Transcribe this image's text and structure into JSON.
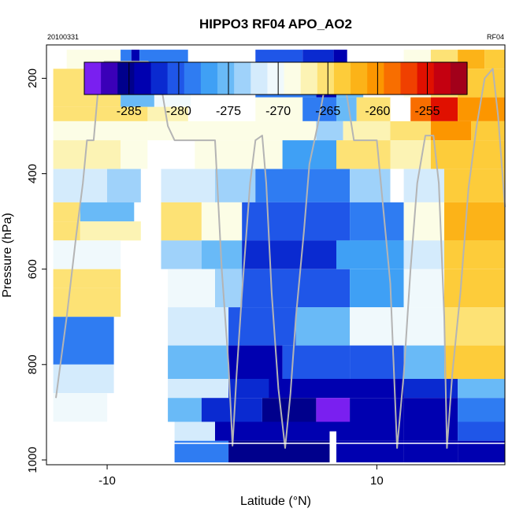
{
  "chart_data": {
    "type": "heatmap",
    "title": "HIPPO3 RF04 APO_AO2",
    "date_label": "20100331",
    "flight_label": "RF04",
    "xlabel": "Latitude (°N)",
    "ylabel": "Pressure (hPa)",
    "xlim": [
      -14.5,
      19.5
    ],
    "ylim": [
      1010,
      130
    ],
    "x_ticks": [
      -10,
      10
    ],
    "y_ticks": [
      200,
      400,
      600,
      800,
      1000
    ],
    "colorbar": {
      "range": [
        -289.5,
        -251
      ],
      "ticks": [
        -285,
        -280,
        -275,
        -270,
        -265,
        -260,
        -255
      ],
      "colors": [
        "#7a1ff0",
        "#3a00b8",
        "#00008c",
        "#0000b0",
        "#0a2ad0",
        "#1f56e8",
        "#2f7cf2",
        "#3fa0f5",
        "#69baf7",
        "#9fd2fa",
        "#d4ebfc",
        "#f0f9fc",
        "#fcfde6",
        "#fcf3b4",
        "#fde275",
        "#fdcc3a",
        "#fcb318",
        "#fc9600",
        "#f86e00",
        "#f04000",
        "#e01000",
        "#c40010",
        "#a2001a"
      ]
    },
    "cells": [
      [
        -13.0,
        -9.0,
        140,
        180,
        -269
      ],
      [
        -9.0,
        -8.2,
        140,
        180,
        -279
      ],
      [
        -8.2,
        -7.6,
        140,
        180,
        -284
      ],
      [
        -7.6,
        -4.0,
        140,
        180,
        -278
      ],
      [
        -14.0,
        -9.0,
        180,
        260,
        -265
      ],
      [
        -9.0,
        -6.5,
        180,
        260,
        -275
      ],
      [
        -6.5,
        -3.8,
        180,
        260,
        -270
      ],
      [
        -14.0,
        -7.0,
        260,
        290,
        -266
      ],
      [
        -7.0,
        -4.0,
        260,
        290,
        -267
      ],
      [
        -14.0,
        -7.0,
        290,
        330,
        -268
      ],
      [
        -7.0,
        2.0,
        290,
        330,
        -269
      ],
      [
        -14.0,
        -9.0,
        330,
        390,
        -267
      ],
      [
        -9.0,
        -7.0,
        330,
        390,
        -268
      ],
      [
        -14.0,
        -10.0,
        390,
        460,
        -272
      ],
      [
        -10.0,
        -7.5,
        390,
        460,
        -273
      ],
      [
        -14.0,
        -12.0,
        460,
        500,
        -265
      ],
      [
        -12.0,
        -8.0,
        460,
        500,
        -275
      ],
      [
        -14.0,
        -12.0,
        500,
        540,
        -266
      ],
      [
        -12.0,
        -7.5,
        500,
        540,
        -267
      ],
      [
        -14.0,
        -9.0,
        540,
        600,
        -270
      ],
      [
        -14.0,
        -9.0,
        600,
        640,
        -265
      ],
      [
        -14.0,
        -9.0,
        640,
        700,
        -266
      ],
      [
        -14.0,
        -9.5,
        700,
        800,
        -279
      ],
      [
        -14.0,
        -9.5,
        800,
        860,
        -272
      ],
      [
        -14.0,
        -10.0,
        860,
        920,
        -270
      ],
      [
        1.0,
        4.5,
        140,
        180,
        -280
      ],
      [
        4.5,
        6.8,
        140,
        180,
        -282
      ],
      [
        6.8,
        7.8,
        140,
        180,
        -284
      ],
      [
        1.0,
        5.5,
        180,
        240,
        -278
      ],
      [
        5.5,
        7.0,
        180,
        240,
        -283
      ],
      [
        7.0,
        9.0,
        180,
        240,
        -276
      ],
      [
        1.0,
        4.5,
        240,
        290,
        -268
      ],
      [
        4.5,
        7.0,
        240,
        290,
        -278
      ],
      [
        7.0,
        8.5,
        240,
        290,
        -276
      ],
      [
        8.5,
        11.0,
        240,
        290,
        -266
      ],
      [
        2.0,
        5.5,
        290,
        330,
        -268
      ],
      [
        5.5,
        7.5,
        290,
        330,
        -273
      ],
      [
        7.5,
        11.0,
        290,
        330,
        -267
      ],
      [
        -3.5,
        3.0,
        330,
        390,
        -268
      ],
      [
        3.0,
        7.0,
        330,
        390,
        -277
      ],
      [
        7.0,
        11.0,
        330,
        390,
        -266
      ],
      [
        -6.0,
        -2.0,
        390,
        460,
        -272
      ],
      [
        -2.0,
        1.0,
        390,
        460,
        -273
      ],
      [
        1.0,
        8.0,
        390,
        460,
        -279
      ],
      [
        8.0,
        11.0,
        390,
        460,
        -273
      ],
      [
        -6.0,
        -3.0,
        460,
        540,
        -266
      ],
      [
        -3.0,
        0.0,
        460,
        540,
        -269
      ],
      [
        0.0,
        8.0,
        460,
        540,
        -281
      ],
      [
        8.0,
        12.0,
        460,
        540,
        -278
      ],
      [
        -6.0,
        -3.0,
        540,
        600,
        -273
      ],
      [
        -3.0,
        0.0,
        540,
        600,
        -276
      ],
      [
        0.0,
        7.0,
        540,
        600,
        -282
      ],
      [
        7.0,
        12.0,
        540,
        600,
        -277
      ],
      [
        -5.5,
        -2.0,
        600,
        680,
        -270
      ],
      [
        -2.0,
        0.0,
        600,
        680,
        -274
      ],
      [
        0.0,
        8.0,
        600,
        680,
        -281
      ],
      [
        8.0,
        12.0,
        600,
        680,
        -277
      ],
      [
        -5.5,
        -1.0,
        680,
        760,
        -272
      ],
      [
        -1.0,
        4.0,
        680,
        760,
        -280
      ],
      [
        4.0,
        8.0,
        680,
        760,
        -275
      ],
      [
        8.0,
        12.0,
        680,
        760,
        -271
      ],
      [
        -5.5,
        -1.0,
        760,
        830,
        -276
      ],
      [
        -1.0,
        3.0,
        760,
        830,
        -284
      ],
      [
        3.0,
        8.0,
        760,
        830,
        -280
      ],
      [
        8.0,
        12.0,
        760,
        830,
        -281
      ],
      [
        -5.5,
        -1.0,
        830,
        870,
        -272
      ],
      [
        -1.0,
        2.0,
        830,
        870,
        -282
      ],
      [
        2.0,
        12.0,
        830,
        870,
        -284
      ],
      [
        -5.5,
        -3.0,
        870,
        920,
        -276
      ],
      [
        -3.0,
        1.5,
        870,
        920,
        -282
      ],
      [
        1.5,
        5.5,
        870,
        920,
        -285
      ],
      [
        5.5,
        8.0,
        870,
        920,
        -288
      ],
      [
        8.0,
        12.0,
        870,
        920,
        -284
      ],
      [
        -5.0,
        -2.0,
        920,
        960,
        -272
      ],
      [
        -2.0,
        12.0,
        920,
        960,
        -284
      ],
      [
        -5.0,
        -1.0,
        960,
        1005,
        -278
      ],
      [
        -1.0,
        6.5,
        960,
        1005,
        -285
      ],
      [
        7.0,
        12.0,
        960,
        1005,
        -284
      ],
      [
        12.0,
        14.0,
        140,
        180,
        -268
      ],
      [
        14.0,
        16.0,
        140,
        180,
        -266
      ],
      [
        16.0,
        18.0,
        140,
        180,
        -262
      ],
      [
        18.0,
        19.5,
        140,
        180,
        -264
      ],
      [
        12.0,
        14.0,
        180,
        240,
        -269
      ],
      [
        14.0,
        16.0,
        180,
        240,
        -265
      ],
      [
        16.0,
        19.5,
        180,
        240,
        -263
      ],
      [
        12.5,
        14.0,
        240,
        290,
        -258
      ],
      [
        14.0,
        16.0,
        240,
        290,
        -255
      ],
      [
        16.0,
        19.5,
        240,
        290,
        -260
      ],
      [
        11.0,
        14.0,
        290,
        330,
        -266
      ],
      [
        14.0,
        17.0,
        290,
        330,
        -261
      ],
      [
        17.0,
        19.5,
        290,
        330,
        -263
      ],
      [
        11.0,
        14.0,
        330,
        390,
        -267
      ],
      [
        14.0,
        19.5,
        330,
        390,
        -263
      ],
      [
        12.0,
        15.0,
        390,
        460,
        -272
      ],
      [
        15.0,
        19.5,
        390,
        460,
        -263
      ],
      [
        12.0,
        15.0,
        460,
        540,
        -268
      ],
      [
        15.0,
        19.5,
        460,
        540,
        -262
      ],
      [
        12.0,
        15.0,
        540,
        600,
        -272
      ],
      [
        15.0,
        19.5,
        540,
        600,
        -263
      ],
      [
        12.0,
        15.0,
        600,
        680,
        -271
      ],
      [
        15.0,
        19.5,
        600,
        680,
        -264
      ],
      [
        12.0,
        15.0,
        680,
        760,
        -270
      ],
      [
        15.0,
        19.5,
        680,
        760,
        -266
      ],
      [
        12.0,
        15.0,
        760,
        830,
        -275
      ],
      [
        15.0,
        19.5,
        760,
        830,
        -264
      ],
      [
        12.0,
        16.0,
        830,
        870,
        -282
      ],
      [
        16.0,
        19.5,
        830,
        870,
        -276
      ],
      [
        12.0,
        16.0,
        870,
        920,
        -284
      ],
      [
        16.0,
        19.5,
        870,
        920,
        -279
      ],
      [
        12.0,
        16.0,
        920,
        960,
        -284
      ],
      [
        16.0,
        19.5,
        920,
        960,
        -280
      ],
      [
        12.0,
        16.0,
        960,
        1005,
        -284
      ],
      [
        16.0,
        19.5,
        960,
        1005,
        -283
      ]
    ],
    "flight_track": [
      [
        -13.8,
        870
      ],
      [
        -13.0,
        700
      ],
      [
        -12.3,
        530
      ],
      [
        -11.8,
        420
      ],
      [
        -11.5,
        330
      ],
      [
        -11.0,
        330
      ],
      [
        -10.6,
        200
      ],
      [
        -10.2,
        165
      ],
      [
        -7.0,
        165
      ],
      [
        -6.5,
        175
      ],
      [
        -6.0,
        215
      ],
      [
        -5.5,
        300
      ],
      [
        -5.0,
        330
      ],
      [
        -3.0,
        330
      ],
      [
        -2.0,
        330
      ],
      [
        -1.5,
        600
      ],
      [
        -1.0,
        800
      ],
      [
        -0.7,
        970
      ],
      [
        -0.4,
        820
      ],
      [
        0.0,
        650
      ],
      [
        0.6,
        420
      ],
      [
        1.0,
        330
      ],
      [
        1.5,
        320
      ],
      [
        1.8,
        420
      ],
      [
        2.2,
        650
      ],
      [
        2.7,
        850
      ],
      [
        3.2,
        975
      ],
      [
        3.6,
        860
      ],
      [
        4.0,
        700
      ],
      [
        4.6,
        520
      ],
      [
        5.0,
        380
      ],
      [
        5.6,
        300
      ],
      [
        6.2,
        210
      ],
      [
        6.6,
        180
      ],
      [
        7.3,
        180
      ],
      [
        7.8,
        240
      ],
      [
        8.3,
        330
      ],
      [
        8.8,
        330
      ],
      [
        9.0,
        330
      ],
      [
        10.0,
        330
      ],
      [
        11.0,
        630
      ],
      [
        11.5,
        975
      ],
      [
        12.0,
        820
      ],
      [
        12.5,
        600
      ],
      [
        13.0,
        420
      ],
      [
        13.6,
        320
      ],
      [
        14.2,
        320
      ],
      [
        14.6,
        420
      ],
      [
        15.0,
        700
      ],
      [
        15.2,
        975
      ],
      [
        15.6,
        820
      ],
      [
        16.2,
        650
      ],
      [
        16.8,
        430
      ],
      [
        17.4,
        300
      ],
      [
        18.0,
        200
      ],
      [
        18.6,
        180
      ],
      [
        19.0,
        280
      ],
      [
        19.5,
        470
      ]
    ],
    "surface_line_pressure": 965
  }
}
